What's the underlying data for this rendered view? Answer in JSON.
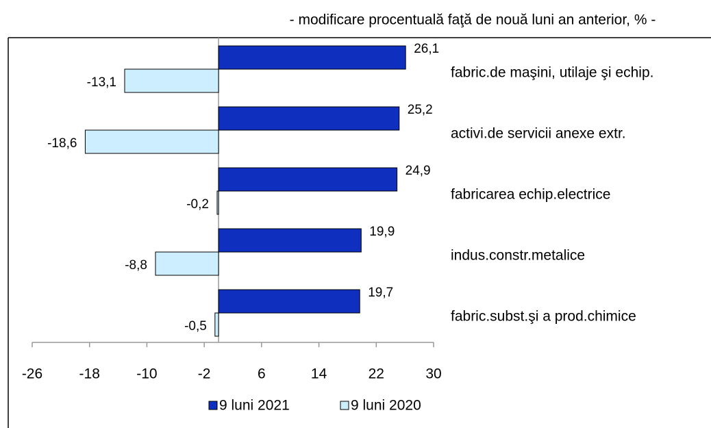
{
  "chart_data": {
    "type": "bar",
    "orientation": "horizontal",
    "subtitle": "- modificare procentuală faţă de nouă luni an anterior, % -",
    "categories": [
      "fabric.de maşini, utilaje şi echip.",
      "activi.de servicii anexe extr.",
      "fabricarea echip.electrice",
      "indus.constr.metalice",
      "fabric.subst.şi a prod.chimice"
    ],
    "series": [
      {
        "name": "9 luni 2021",
        "color": "#0f2fbf",
        "values": [
          26.1,
          25.2,
          24.9,
          19.9,
          19.7
        ],
        "value_labels": [
          "26,1",
          "25,2",
          "24,9",
          "19,9",
          "19,7"
        ]
      },
      {
        "name": "9 luni 2020",
        "color": "#cceeff",
        "values": [
          -13.1,
          -18.6,
          -0.2,
          -8.8,
          -0.5
        ],
        "value_labels": [
          "-13,1",
          "-18,6",
          "-0,2",
          "-8,8",
          "-0,5"
        ]
      }
    ],
    "xlim": [
      -26,
      30
    ],
    "xticks": [
      -26,
      -18,
      -10,
      -2,
      6,
      14,
      22,
      30
    ],
    "legend": "bottom"
  }
}
